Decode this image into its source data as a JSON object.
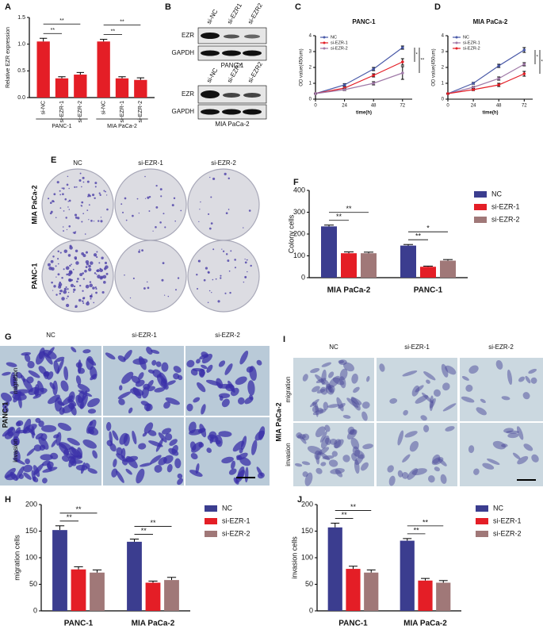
{
  "panel_labels": [
    "A",
    "B",
    "C",
    "D",
    "E",
    "F",
    "G",
    "H",
    "I",
    "J"
  ],
  "blot": {
    "lanes": [
      "si-NC",
      "si-EZR1",
      "si-EZR2"
    ],
    "rows": [
      "EZR",
      "GAPDH"
    ],
    "cell_lines": [
      "PANC-1",
      "MIA PaCa-2"
    ]
  },
  "colony": {
    "columns": [
      "NC",
      "si-EZR-1",
      "si-EZR-2"
    ],
    "rows": [
      "MIA PaCa-2",
      "PANC-1"
    ]
  },
  "transwell_g": {
    "columns": [
      "NC",
      "si-EZR-1",
      "si-EZR-2"
    ],
    "rows": [
      "migration",
      "invasion"
    ],
    "cell_line": "PANC-1"
  },
  "transwell_i": {
    "columns": [
      "NC",
      "si-EZR-1",
      "si-EZR-2"
    ],
    "rows": [
      "migration",
      "invasion"
    ],
    "cell_line": "MIA PaCa-2"
  },
  "chart_data": [
    {
      "type": "bar",
      "y_label": "Relative EZR expression",
      "categories": [
        "si-NC",
        "si-EZR-1",
        "si-EZR-2",
        "si-NC",
        "si-EZR-1",
        "si-EZR-2"
      ],
      "groups": [
        "PANC-1",
        "MIA PaCa-2"
      ],
      "values": [
        1.05,
        0.36,
        0.43,
        1.05,
        0.36,
        0.33
      ],
      "errors": [
        0.06,
        0.03,
        0.04,
        0.04,
        0.03,
        0.04
      ],
      "color": "#e41e26",
      "ylim": [
        0,
        1.5
      ],
      "yticks": [
        {
          "value": 0,
          "label": "0.0"
        },
        0.5,
        {
          "value": 1,
          "label": "1.0"
        },
        1.5
      ],
      "annotations": [
        "**",
        "**",
        "**",
        "**"
      ]
    },
    {
      "type": "line",
      "title": "PANC-1",
      "x_label": "time(h)",
      "y_label": "OD value(450um)",
      "x": [
        0,
        24,
        48,
        72
      ],
      "xlim": [
        0,
        80
      ],
      "xticks": [
        0,
        24,
        48,
        72
      ],
      "ylim": [
        0,
        4
      ],
      "yticks": [
        0,
        1,
        2,
        3,
        4
      ],
      "series": [
        {
          "name": "NC",
          "color": "#4a5aa8",
          "values": [
            0.35,
            0.9,
            1.9,
            3.25
          ],
          "errors": [
            0.03,
            0.08,
            0.1,
            0.1
          ]
        },
        {
          "name": "si-EZR-1",
          "color": "#e41e26",
          "values": [
            0.35,
            0.7,
            1.5,
            2.35
          ],
          "errors": [
            0.03,
            0.06,
            0.1,
            0.2
          ]
        },
        {
          "name": "si-EZR-2",
          "color": "#a07aa8",
          "values": [
            0.35,
            0.6,
            1.0,
            1.65
          ],
          "errors": [
            0.03,
            0.06,
            0.1,
            0.4
          ]
        }
      ],
      "annotations": [
        "*",
        "**"
      ]
    },
    {
      "type": "line",
      "title": "MIA PaCa-2",
      "x_label": "time(h)",
      "y_label": "OD value(450um)",
      "x": [
        0,
        24,
        48,
        72
      ],
      "xlim": [
        0,
        80
      ],
      "xticks": [
        0,
        24,
        48,
        72
      ],
      "ylim": [
        0,
        4
      ],
      "yticks": [
        0,
        1,
        2,
        3,
        4
      ],
      "series": [
        {
          "name": "NC",
          "color": "#4a5aa8",
          "values": [
            0.35,
            1.0,
            2.1,
            3.1
          ],
          "errors": [
            0.03,
            0.06,
            0.1,
            0.15
          ]
        },
        {
          "name": "si-EZR-1",
          "color": "#a07aa8",
          "values": [
            0.35,
            0.75,
            1.3,
            2.2
          ],
          "errors": [
            0.03,
            0.06,
            0.1,
            0.1
          ]
        },
        {
          "name": "si-EZR-2",
          "color": "#e41e26",
          "values": [
            0.35,
            0.6,
            0.9,
            1.6
          ],
          "errors": [
            0.03,
            0.06,
            0.1,
            0.15
          ]
        }
      ],
      "annotations": [
        "*",
        "**"
      ]
    },
    {
      "type": "bar",
      "y_label": "Colony cells",
      "categories": [
        "MIA PaCa-2",
        "PANC-1"
      ],
      "series": [
        {
          "name": "NC",
          "color": "#3b3d8f",
          "values": [
            235,
            147
          ],
          "errors": [
            6,
            5
          ]
        },
        {
          "name": "si-EZR-1",
          "color": "#e41e26",
          "values": [
            112,
            50
          ],
          "errors": [
            6,
            3
          ]
        },
        {
          "name": "si-EZR-2",
          "color": "#a07878",
          "values": [
            112,
            78
          ],
          "errors": [
            5,
            5
          ]
        }
      ],
      "ylim": [
        0,
        400
      ],
      "yticks": [
        0,
        100,
        200,
        300,
        400
      ],
      "annotations": [
        "**",
        "**",
        "**",
        "*"
      ]
    },
    {
      "type": "bar",
      "y_label": "migration cells",
      "categories": [
        "PANC-1",
        "MIA PaCa-2"
      ],
      "series": [
        {
          "name": "NC",
          "color": "#3b3d8f",
          "values": [
            152,
            130
          ],
          "errors": [
            8,
            5
          ]
        },
        {
          "name": "si-EZR-1",
          "color": "#e41e26",
          "values": [
            78,
            53
          ],
          "errors": [
            5,
            3
          ]
        },
        {
          "name": "si-EZR-2",
          "color": "#a07878",
          "values": [
            72,
            58
          ],
          "errors": [
            5,
            5
          ]
        }
      ],
      "ylim": [
        0,
        200
      ],
      "yticks": [
        0,
        50,
        100,
        150,
        200
      ],
      "annotations": [
        "**",
        "**",
        "**",
        "**"
      ]
    },
    {
      "type": "bar",
      "y_label": "invasion cells",
      "categories": [
        "PANC-1",
        "MIA PaCa-2"
      ],
      "series": [
        {
          "name": "NC",
          "color": "#3b3d8f",
          "values": [
            157,
            132
          ],
          "errors": [
            8,
            4
          ]
        },
        {
          "name": "si-EZR-1",
          "color": "#e41e26",
          "values": [
            79,
            57
          ],
          "errors": [
            5,
            4
          ]
        },
        {
          "name": "si-EZR-2",
          "color": "#a07878",
          "values": [
            72,
            53
          ],
          "errors": [
            5,
            4
          ]
        }
      ],
      "ylim": [
        0,
        200
      ],
      "yticks": [
        0,
        50,
        100,
        150,
        200
      ],
      "annotations": [
        "**",
        "**",
        "**",
        "**"
      ]
    }
  ]
}
